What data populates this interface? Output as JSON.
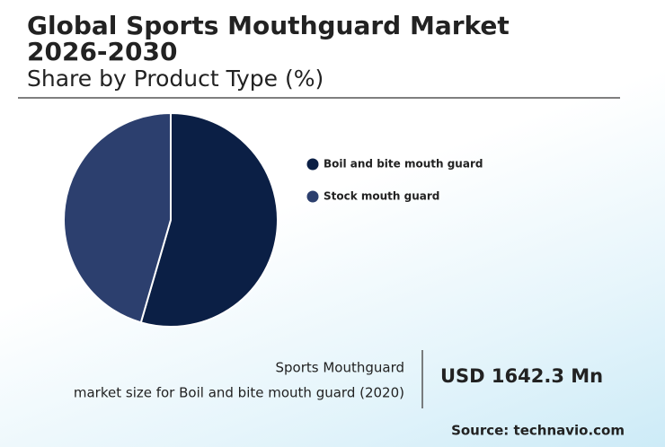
{
  "chart_data": {
    "type": "pie",
    "title": "Global Sports Mouthguard Market 2026-2030",
    "subtitle": "Share by Product Type (%)",
    "categories": [
      "Boil and bite mouth guard",
      "Stock mouth guard"
    ],
    "values": [
      54.5,
      45.5
    ],
    "colors": [
      "#0b1f45",
      "#2c3f6e"
    ]
  },
  "highlight": {
    "label_lines": [
      "Sports Mouthguard",
      "market size for Boil and bite mouth guard (2020)"
    ],
    "value": "USD 1642.3 Mn"
  },
  "source": "Source: technavio.com"
}
